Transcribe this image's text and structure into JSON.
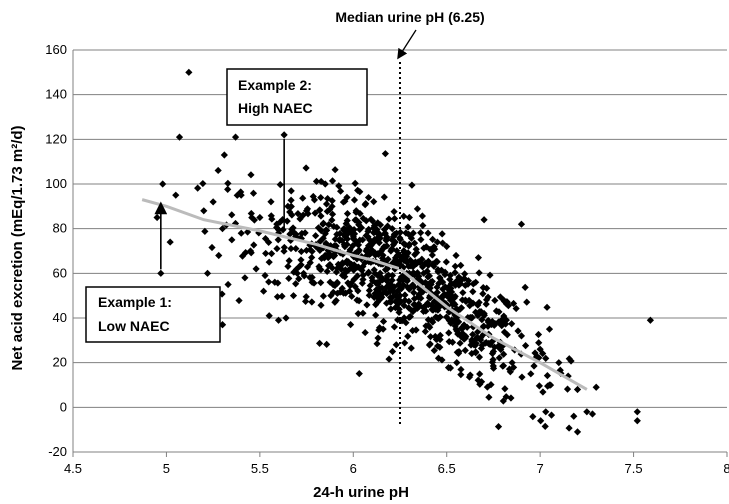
{
  "chart_data": {
    "type": "scatter",
    "xlabel": "24-h urine pH",
    "ylabel": "Net acid excretion (mEq/1.73 m²/d)",
    "xlim": [
      4.5,
      8
    ],
    "ylim": [
      -20,
      160
    ],
    "x_ticks": [
      "4.5",
      "5",
      "5.5",
      "6",
      "6.5",
      "7",
      "7.5",
      "8"
    ],
    "y_ticks": [
      "160",
      "140",
      "120",
      "100",
      "80",
      "60",
      "40",
      "20",
      "0",
      "-20"
    ],
    "grid": "horizontal",
    "marker": "diamond",
    "marker_color": "#000000",
    "n_points_approx": 1000,
    "points": [
      [
        5.12,
        150
      ],
      [
        5.07,
        121
      ],
      [
        5.37,
        121
      ],
      [
        5.63,
        122
      ],
      [
        6.02,
        131
      ],
      [
        4.98,
        100
      ],
      [
        5.05,
        95
      ],
      [
        4.95,
        85
      ],
      [
        5.02,
        74
      ],
      [
        4.97,
        60
      ],
      [
        5.18,
        50
      ],
      [
        5.12,
        47
      ],
      [
        5.3,
        37
      ],
      [
        5.31,
        113
      ],
      [
        5.26,
        48
      ],
      [
        5.55,
        41
      ],
      [
        5.6,
        39
      ],
      [
        5.64,
        40
      ],
      [
        6.22,
        36
      ],
      [
        6.23,
        28
      ],
      [
        6.21,
        25
      ],
      [
        7.25,
        -2
      ],
      [
        7.03,
        -2
      ],
      [
        7.18,
        -4
      ],
      [
        7.2,
        -11
      ],
      [
        7.28,
        -3
      ],
      [
        7.52,
        -2
      ],
      [
        7.52,
        -6
      ],
      [
        7.59,
        39
      ],
      [
        7.05,
        35
      ],
      [
        7.3,
        9
      ],
      [
        6.9,
        82
      ],
      [
        6.7,
        84
      ],
      [
        6.5,
        72
      ],
      [
        5.2,
        88
      ],
      [
        5.25,
        92
      ],
      [
        5.3,
        80
      ],
      [
        5.35,
        75
      ],
      [
        5.4,
        95
      ],
      [
        5.45,
        70
      ],
      [
        5.5,
        85
      ],
      [
        5.55,
        65
      ],
      [
        5.6,
        78
      ],
      [
        5.65,
        90
      ],
      [
        5.7,
        60
      ],
      [
        5.75,
        88
      ],
      [
        5.8,
        72
      ],
      [
        5.85,
        100
      ],
      [
        5.9,
        68
      ],
      [
        5.95,
        80
      ],
      [
        6.0,
        62
      ],
      [
        6.05,
        75
      ],
      [
        6.1,
        58
      ],
      [
        6.15,
        70
      ],
      [
        6.2,
        55
      ],
      [
        5.22,
        60
      ],
      [
        5.28,
        68
      ],
      [
        5.33,
        55
      ],
      [
        5.42,
        58
      ],
      [
        5.48,
        62
      ],
      [
        5.52,
        52
      ],
      [
        5.58,
        56
      ],
      [
        5.68,
        50
      ],
      [
        5.72,
        66
      ],
      [
        5.78,
        56
      ],
      [
        5.82,
        62
      ],
      [
        5.88,
        50
      ],
      [
        5.92,
        64
      ],
      [
        5.98,
        52
      ],
      [
        6.02,
        48
      ],
      [
        6.08,
        60
      ],
      [
        6.12,
        46
      ],
      [
        6.18,
        54
      ],
      [
        6.25,
        50
      ],
      [
        6.3,
        60
      ],
      [
        6.35,
        45
      ],
      [
        6.4,
        55
      ],
      [
        6.45,
        40
      ],
      [
        6.5,
        50
      ],
      [
        6.55,
        35
      ],
      [
        6.6,
        48
      ],
      [
        6.65,
        30
      ],
      [
        6.7,
        42
      ],
      [
        6.75,
        25
      ],
      [
        6.8,
        38
      ],
      [
        6.85,
        20
      ],
      [
        6.9,
        32
      ],
      [
        6.95,
        15
      ],
      [
        7.0,
        26
      ],
      [
        7.05,
        10
      ],
      [
        7.1,
        20
      ],
      [
        7.15,
        14
      ],
      [
        7.2,
        8
      ],
      [
        6.3,
        85
      ],
      [
        6.4,
        78
      ],
      [
        6.45,
        74
      ],
      [
        6.55,
        68
      ]
    ],
    "trend_line": {
      "color": "#bbbbbb",
      "x": [
        4.87,
        5.0,
        5.2,
        5.5,
        5.8,
        6.0,
        6.1,
        6.25,
        6.5,
        6.75,
        7.0,
        7.25
      ],
      "y": [
        93,
        90,
        84,
        79,
        73,
        68,
        66,
        62,
        45,
        31,
        20,
        8
      ]
    },
    "median_line": {
      "x": 6.25,
      "y_from": -8,
      "y_to": 160,
      "style": "dotted"
    },
    "annotations": [
      {
        "id": "median",
        "text": "Median urine pH (6.25)"
      },
      {
        "id": "example1",
        "text_line1": "Example 1:",
        "text_line2": "Low NAEC",
        "point": [
          4.97,
          60
        ],
        "arrow_to": [
          4.97,
          92
        ]
      },
      {
        "id": "example2",
        "text_line1": "Example 2:",
        "text_line2": "High NAEC",
        "point": [
          5.63,
          122
        ],
        "line_to": [
          5.63,
          80
        ]
      }
    ]
  }
}
